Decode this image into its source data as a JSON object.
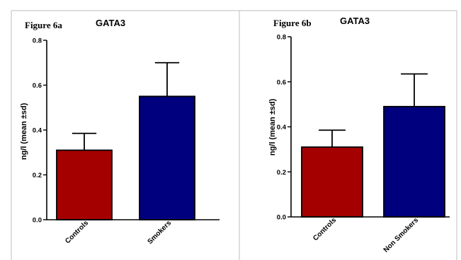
{
  "chart_data": [
    {
      "figure_label": "Figure 6a",
      "type": "bar",
      "title": "GATA3",
      "ylabel": "ng/l (mean ±sd)",
      "xlabel": "",
      "ylim": [
        0,
        0.8
      ],
      "yticks": [
        "0.0",
        "0.2",
        "0.4",
        "0.6",
        "0.8"
      ],
      "categories": [
        "Controls",
        "Smokers"
      ],
      "values": [
        0.31,
        0.55
      ],
      "errors": [
        0.075,
        0.15
      ],
      "colors": [
        "#a40000",
        "#00007f"
      ],
      "grid": false
    },
    {
      "figure_label": "Figure 6b",
      "type": "bar",
      "title": "GATA3",
      "ylabel": "ng/l (mean ±sd)",
      "xlabel": "",
      "ylim": [
        0,
        0.8
      ],
      "yticks": [
        "0.0",
        "0.2",
        "0.4",
        "0.6",
        "0.8"
      ],
      "categories": [
        "Controls",
        "Non Smokers"
      ],
      "values": [
        0.31,
        0.49
      ],
      "errors": [
        0.075,
        0.145
      ],
      "colors": [
        "#a40000",
        "#00007f"
      ],
      "grid": false
    }
  ]
}
